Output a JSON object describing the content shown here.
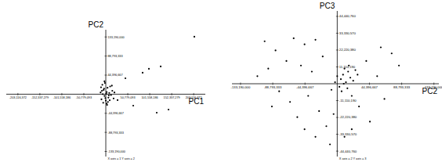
{
  "chart_data": [
    {
      "type": "scatter",
      "x_label": "PC1",
      "y_label": "PC2",
      "annotation": "X axis = 1  Y axis = 2",
      "color": "#000000",
      "marker": "circle",
      "xlim": [
        -230000000,
        230000000
      ],
      "ylim": [
        -145000000,
        150000000
      ],
      "xticks": [
        {
          "value": -203116372,
          "label": "-203,116,372"
        },
        {
          "value": -152337279,
          "label": "-152,337,279"
        },
        {
          "value": -101558186,
          "label": "-101,558,186"
        },
        {
          "value": -50779093,
          "label": "-50,779,093"
        },
        {
          "value": 50779093,
          "label": "50,779,093"
        },
        {
          "value": 101558186,
          "label": "101,558,186"
        },
        {
          "value": 152337279,
          "label": "152,337,279"
        },
        {
          "value": 203116372,
          "label": "203,116,372"
        }
      ],
      "yticks": [
        {
          "value": -133190000,
          "label": "-133,190,000"
        },
        {
          "value": -88793333,
          "label": "-88,793,333"
        },
        {
          "value": -44396667,
          "label": "-44,396,667"
        },
        {
          "value": 44396667,
          "label": "44,396,667"
        },
        {
          "value": 88793333,
          "label": "88,793,333"
        },
        {
          "value": 133190000,
          "label": "133,190,000"
        }
      ],
      "x": [
        204600000,
        99600000,
        126800000,
        85100000,
        45300000,
        144900000,
        117700000,
        63400000,
        27200000,
        -5000000,
        -8000000,
        -3000000,
        2000000,
        6000000,
        -10000000,
        4000000,
        8000000,
        -6000000,
        12000000,
        -2000000,
        15000000,
        -12000000,
        0,
        3000000,
        10000000,
        -7000000,
        5000000,
        18000000,
        -4000000,
        1000000,
        -9000000,
        7000000,
        14000000,
        -1000000,
        9000000,
        -11000000,
        2000000,
        20000000,
        -3000000
      ],
      "values": [
        133700000,
        59000000,
        64500000,
        49900000,
        37100000,
        -35700000,
        -43000000,
        -26600000,
        -13800000,
        10000000,
        22000000,
        -4000000,
        5000000,
        -8000000,
        -12000000,
        15000000,
        3000000,
        -20000000,
        -2000000,
        26000000,
        8000000,
        4000000,
        -15000000,
        -25000000,
        18000000,
        0,
        -18000000,
        -10000000,
        13000000,
        1000000,
        8000000,
        -3000000,
        20000000,
        -9000000,
        -14000000,
        16000000,
        -22000000,
        4000000,
        30000000
      ]
    },
    {
      "type": "scatter",
      "x_label": "PC2",
      "y_label": "PC3",
      "annotation": "X axis = 2  Y axis = 3",
      "color": "#000000",
      "marker": "circle",
      "xlim": [
        -145000000,
        140000000
      ],
      "ylim": [
        -48000000,
        48000000
      ],
      "xticks": [
        {
          "value": -133190000,
          "label": "-133,190,000"
        },
        {
          "value": -88793333,
          "label": "-88,793,333"
        },
        {
          "value": -44396667,
          "label": "-44,396,667"
        },
        {
          "value": 44396667,
          "label": "44,396,667"
        },
        {
          "value": 88793333,
          "label": "88,793,333"
        },
        {
          "value": 133190000,
          "label": "133,190,000"
        }
      ],
      "yticks": [
        {
          "value": -44440760,
          "label": "-44,440,760"
        },
        {
          "value": -33330570,
          "label": "-33,330,570"
        },
        {
          "value": -22220380,
          "label": "-22,220,380"
        },
        {
          "value": -11110190,
          "label": "-11,110,190"
        },
        {
          "value": 11110190,
          "label": "11,110,190"
        },
        {
          "value": 22220380,
          "label": "22,220,380"
        },
        {
          "value": 33330570,
          "label": "33,330,570"
        },
        {
          "value": 44440760,
          "label": "44,440,760"
        }
      ],
      "x": [
        -100000000,
        -85000000,
        -60000000,
        -45000000,
        -30000000,
        -70000000,
        -95000000,
        -110000000,
        -50000000,
        -20000000,
        -35000000,
        60000000,
        75000000,
        40000000,
        85000000,
        55000000,
        -80000000,
        -65000000,
        -40000000,
        -25000000,
        -15000000,
        -55000000,
        -30000000,
        -10000000,
        -45000000,
        -5000000,
        20000000,
        30000000,
        45000000,
        10000000,
        65000000,
        -90000000,
        5000000,
        8000000,
        12000000,
        15000000,
        3000000,
        18000000,
        10000000,
        22000000,
        6000000,
        14000000,
        25000000,
        0,
        -3000000,
        9000000,
        16000000,
        28000000,
        -8000000,
        20000000
      ],
      "values": [
        28000000,
        22000000,
        30000000,
        26000000,
        29000000,
        15000000,
        10000000,
        5000000,
        12000000,
        18000000,
        8000000,
        24000000,
        20000000,
        15000000,
        12000000,
        5000000,
        -5000000,
        -12000000,
        -8000000,
        -18000000,
        -28000000,
        -22000000,
        -35000000,
        -40000000,
        -30000000,
        -20000000,
        -30000000,
        -15000000,
        -25000000,
        -35000000,
        -10000000,
        -15000000,
        3000000,
        6000000,
        1000000,
        8000000,
        -2000000,
        4000000,
        10000000,
        2000000,
        -5000000,
        -3000000,
        9000000,
        5000000,
        1000000,
        0,
        12000000,
        6000000,
        -4000000,
        -8000000
      ]
    }
  ]
}
